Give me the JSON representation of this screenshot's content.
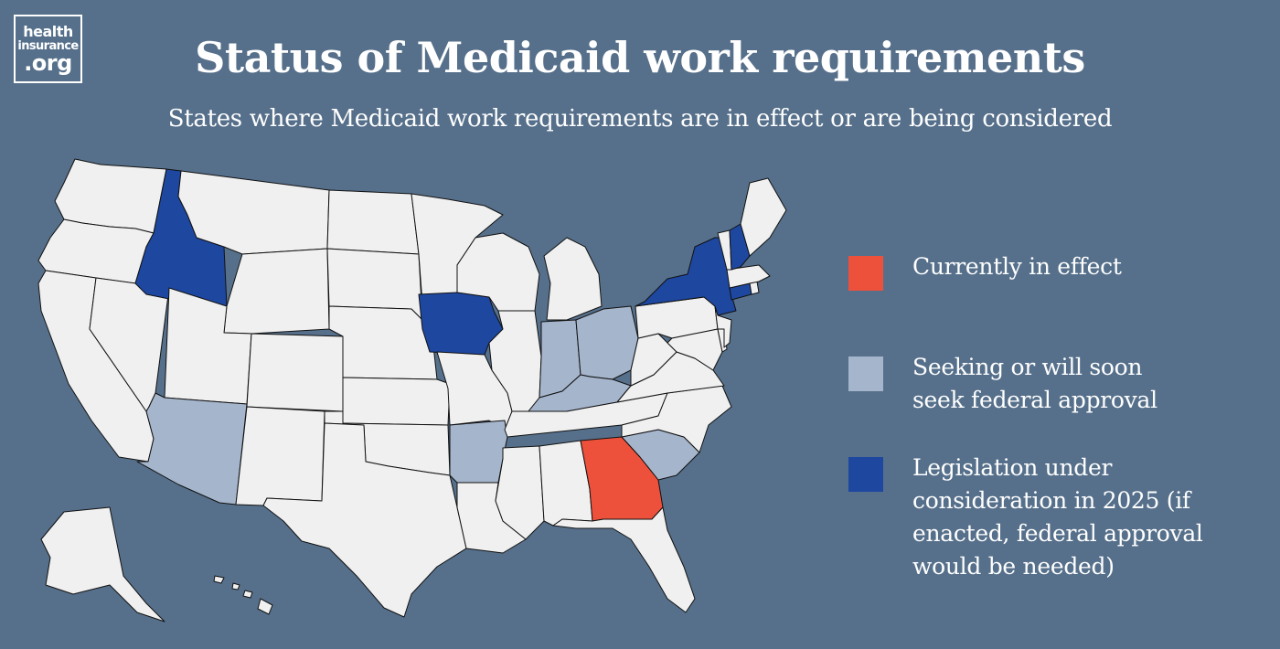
{
  "logo": {
    "line1": "health",
    "line2": "insurance",
    "line3": ".org"
  },
  "title": "Status of Medicaid work requirements",
  "subtitle": "States where Medicaid work requirements are in effect or are being considered",
  "colors": {
    "background": "#56708b",
    "default_state": "#f0f0f0",
    "in_effect": "#ee513b",
    "seeking_approval": "#a5b5cc",
    "legislation": "#1e47a0"
  },
  "legend": [
    {
      "key": "in_effect",
      "color": "#ee513b",
      "lines": [
        "Currently in effect"
      ]
    },
    {
      "key": "seeking_approval",
      "color": "#a5b5cc",
      "lines": [
        "Seeking or will soon",
        "seek federal approval"
      ]
    },
    {
      "key": "legislation",
      "color": "#1e47a0",
      "lines": [
        "Legislation under",
        "consideration in 2025 (if",
        "enacted, federal approval",
        "would be needed)"
      ]
    }
  ],
  "states": {
    "in_effect": [
      "GA"
    ],
    "seeking_approval": [
      "AZ",
      "AR",
      "IN",
      "OH",
      "KY",
      "SC"
    ],
    "legislation": [
      "ID",
      "IA",
      "NY",
      "NH",
      "CT"
    ]
  }
}
